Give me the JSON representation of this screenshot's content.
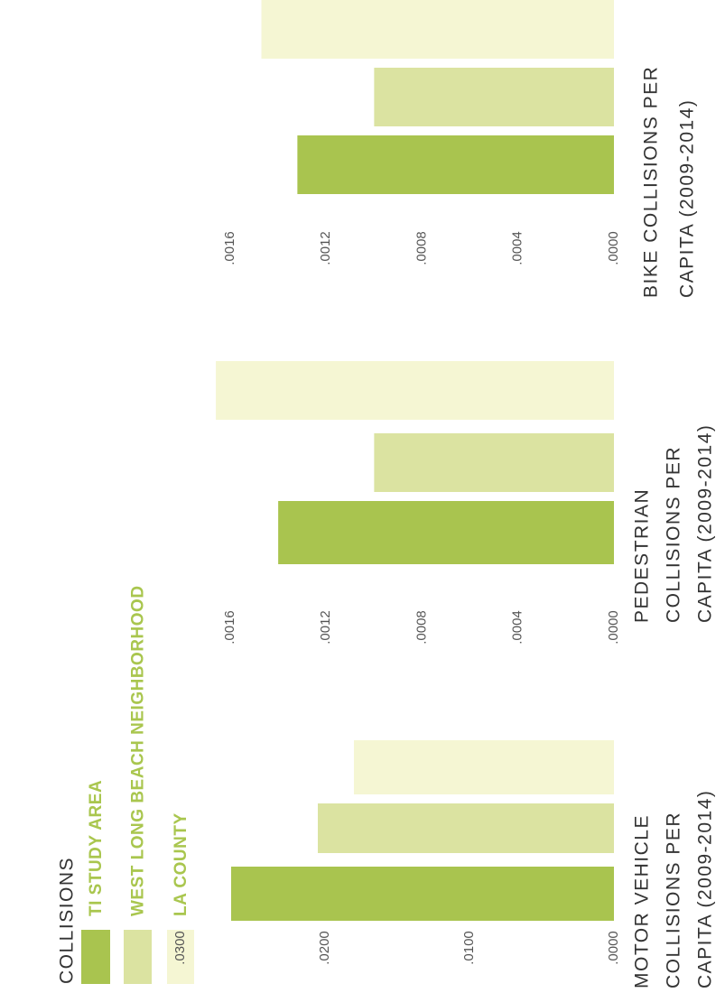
{
  "title": "COLLISIONS",
  "legend": [
    {
      "name": "TI STUDY AREA",
      "color": "#a9c44f"
    },
    {
      "name": "WEST LONG BEACH NEIGHBORHOOD",
      "color": "#dbe3a1"
    },
    {
      "name": "LA COUNTY",
      "color": "#f5f6d3"
    }
  ],
  "chart_data": [
    {
      "type": "bar",
      "xlabel": [
        "MOTOR VEHICLE",
        "COLLISIONS PER",
        "CAPITA (2009-2014)"
      ],
      "ylim": [
        0,
        0.03
      ],
      "yticks": [
        {
          "value": 0,
          "label": ".0000"
        },
        {
          "value": 0.01,
          "label": ".0100"
        },
        {
          "value": 0.02,
          "label": ".0200"
        },
        {
          "value": 0.03,
          "label": ".0300"
        }
      ],
      "series": [
        {
          "color": "#a9c44f",
          "values": [
            0.0265
          ]
        },
        {
          "color": "#dbe3a1",
          "values": [
            0.0205
          ]
        },
        {
          "color": "#f5f6d3",
          "values": [
            0.018
          ]
        }
      ]
    },
    {
      "type": "bar",
      "xlabel": [
        "PEDESTRIAN",
        "COLLISIONS PER",
        "CAPITA (2009-2014)"
      ],
      "ylim": [
        0,
        0.0016
      ],
      "yticks": [
        {
          "value": 0,
          "label": ".0000"
        },
        {
          "value": 0.0004,
          "label": ".0004"
        },
        {
          "value": 0.0008,
          "label": ".0008"
        },
        {
          "value": 0.0012,
          "label": ".0012"
        },
        {
          "value": 0.0016,
          "label": ".0016"
        }
      ],
      "series": [
        {
          "color": "#a9c44f",
          "values": [
            0.0014
          ]
        },
        {
          "color": "#dbe3a1",
          "values": [
            0.001
          ]
        },
        {
          "color": "#f5f6d3",
          "values": [
            0.00166
          ]
        }
      ]
    },
    {
      "type": "bar",
      "xlabel": [
        "BIKE COLLISIONS PER",
        "CAPITA (2009-2014)"
      ],
      "ylim": [
        0,
        0.0016
      ],
      "yticks": [
        {
          "value": 0,
          "label": ".0000"
        },
        {
          "value": 0.0004,
          "label": ".0004"
        },
        {
          "value": 0.0008,
          "label": ".0008"
        },
        {
          "value": 0.0012,
          "label": ".0012"
        },
        {
          "value": 0.0016,
          "label": ".0016"
        }
      ],
      "series": [
        {
          "color": "#a9c44f",
          "values": [
            0.00132
          ]
        },
        {
          "color": "#dbe3a1",
          "values": [
            0.001
          ]
        },
        {
          "color": "#f5f6d3",
          "values": [
            0.00147
          ]
        }
      ]
    }
  ]
}
